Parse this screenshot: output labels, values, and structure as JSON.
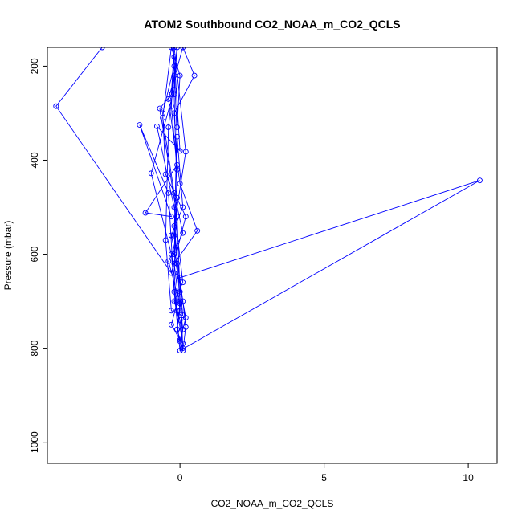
{
  "chart_data": {
    "type": "line",
    "title": "ATOM2 Southbound CO2_NOAA_m_CO2_QCLS",
    "xlabel": "CO2_NOAA_m_CO2_QCLS",
    "ylabel": "Pressure (mbar)",
    "xlim": [
      -4.6,
      11.0
    ],
    "ylim": [
      1045,
      160
    ],
    "y_reversed": true,
    "x_ticks": [
      0,
      5,
      10
    ],
    "y_ticks": [
      200,
      400,
      600,
      800,
      1000
    ],
    "grid": false,
    "legend": "none",
    "series": [
      {
        "color": "#0000ff",
        "marker": "open-circle",
        "points": [
          [
            -2.7,
            160
          ],
          [
            -4.3,
            285
          ],
          [
            -0.3,
            640
          ],
          [
            0.2,
            520
          ],
          [
            -0.5,
            430
          ],
          [
            -0.6,
            300
          ],
          [
            -0.2,
            200
          ],
          [
            -0.1,
            350
          ],
          [
            0.1,
            500
          ],
          [
            -0.3,
            560
          ],
          [
            -0.1,
            620
          ],
          [
            0.0,
            700
          ],
          [
            0.1,
            760
          ],
          [
            0.0,
            805
          ],
          [
            -0.2,
            680
          ],
          [
            -0.4,
            470
          ],
          [
            -1.4,
            325
          ],
          [
            -0.3,
            520
          ],
          [
            -1.2,
            512
          ],
          [
            -0.1,
            410
          ],
          [
            -0.2,
            300
          ],
          [
            0.5,
            220
          ],
          [
            0.1,
            160
          ],
          [
            -0.4,
            270
          ],
          [
            0.0,
            450
          ],
          [
            0.6,
            550
          ],
          [
            -0.2,
            620
          ],
          [
            0.0,
            720
          ],
          [
            -0.1,
            760
          ],
          [
            0.1,
            800
          ],
          [
            0.0,
            650
          ],
          [
            10.4,
            443
          ],
          [
            0.0,
            805
          ],
          [
            -0.3,
            600
          ],
          [
            -1.0,
            428
          ],
          [
            -0.2,
            250
          ],
          [
            -0.1,
            160
          ],
          [
            -0.4,
            330
          ],
          [
            -0.5,
            570
          ],
          [
            -0.3,
            720
          ],
          [
            0.1,
            730
          ],
          [
            -0.2,
            540
          ],
          [
            0.2,
            382
          ],
          [
            -0.2,
            160
          ],
          [
            -0.3,
            260
          ],
          [
            -0.7,
            290
          ],
          [
            -0.1,
            520
          ],
          [
            0.0,
            680
          ],
          [
            -0.3,
            750
          ],
          [
            0.0,
            782
          ],
          [
            0.1,
            805
          ],
          [
            0.2,
            755
          ],
          [
            0.1,
            700
          ],
          [
            -0.2,
            560
          ],
          [
            -0.1,
            330
          ],
          [
            0.0,
            220
          ],
          [
            -0.3,
            160
          ],
          [
            -0.6,
            310
          ],
          [
            -0.2,
            470
          ],
          [
            0.1,
            555
          ],
          [
            -0.4,
            615
          ],
          [
            0.0,
            705
          ],
          [
            -0.1,
            760
          ],
          [
            0.0,
            785
          ],
          [
            0.2,
            735
          ],
          [
            -0.2,
            600
          ],
          [
            -0.1,
            420
          ],
          [
            -0.3,
            285
          ],
          [
            -0.2,
            180
          ],
          [
            0.0,
            380
          ],
          [
            -0.8,
            328
          ],
          [
            -0.2,
            500
          ],
          [
            0.1,
            660
          ],
          [
            -0.2,
            700
          ],
          [
            0.0,
            740
          ],
          [
            0.1,
            790
          ],
          [
            -0.1,
            720
          ],
          [
            -0.2,
            640
          ],
          [
            -0.1,
            480
          ],
          [
            -0.2,
            260
          ],
          [
            -0.2,
            220
          ]
        ]
      }
    ]
  }
}
